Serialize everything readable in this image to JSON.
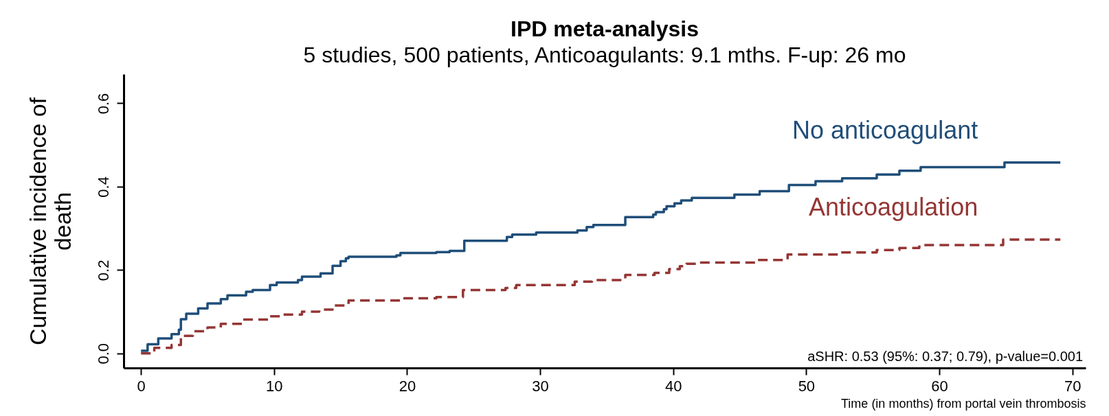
{
  "chart_data": {
    "type": "step",
    "title": "IPD meta-analysis",
    "subtitle": "5 studies, 500 patients, Anticoagulants: 9.1 mths. F-up: 26 mo",
    "xlabel": "Time (in months) from portal vein thrombosis",
    "ylabel": "Cumulative incidence of\ndeath",
    "annotations": [
      "aSHR: 0.53 (95%: 0.37; 0.79), p-value=0.001"
    ],
    "xlim": [
      -1.3,
      71
    ],
    "ylim": [
      -0.035,
      0.67
    ],
    "xticks": [
      0,
      10,
      20,
      30,
      40,
      50,
      60,
      70
    ],
    "yticks": [
      {
        "value": 0,
        "label": "0.0"
      },
      {
        "value": 0.2,
        "label": "0.2"
      },
      {
        "value": 0.4,
        "label": "0.4"
      },
      {
        "value": 0.6,
        "label": "0.6"
      }
    ],
    "grid": false,
    "series": [
      {
        "name": "No anticoagulant",
        "color": "#1f4e79",
        "line_style": "solid",
        "x": [
          0,
          0.5,
          1.3,
          2.3,
          2.85,
          3.0,
          3.4,
          4.3,
          5.0,
          6.0,
          6.5,
          7.9,
          8.4,
          9.7,
          10.2,
          11.8,
          12.1,
          13.5,
          14.4,
          15.0,
          15.4,
          15.6,
          19.2,
          19.5,
          22.2,
          23.2,
          24.3,
          27.5,
          27.9,
          29.7,
          32.8,
          33.5,
          34.0,
          36.4,
          38.5,
          38.7,
          39.3,
          39.5,
          40.1,
          40.6,
          41.4,
          44.6,
          46.5,
          48.7,
          50.7,
          52.7,
          55.3,
          57.0,
          58.6,
          64.9,
          69.1
        ],
        "values": [
          0.006,
          0.022,
          0.036,
          0.046,
          0.057,
          0.082,
          0.095,
          0.108,
          0.12,
          0.13,
          0.139,
          0.148,
          0.152,
          0.164,
          0.17,
          0.176,
          0.184,
          0.192,
          0.21,
          0.221,
          0.228,
          0.232,
          0.235,
          0.241,
          0.243,
          0.246,
          0.27,
          0.279,
          0.285,
          0.29,
          0.295,
          0.303,
          0.308,
          0.327,
          0.333,
          0.339,
          0.346,
          0.353,
          0.36,
          0.367,
          0.373,
          0.381,
          0.389,
          0.404,
          0.413,
          0.42,
          0.429,
          0.438,
          0.447,
          0.458,
          0.458
        ]
      },
      {
        "name": "Anticoagulation",
        "color": "#943634",
        "line_style": "dashed",
        "x": [
          0,
          1.0,
          2.3,
          3.0,
          3.9,
          5.0,
          6.0,
          7.6,
          9.7,
          10.7,
          12.1,
          13.4,
          14.4,
          15.6,
          19.5,
          22.2,
          24.2,
          27.4,
          28.2,
          32.6,
          33.9,
          36.4,
          38.6,
          39.7,
          40.5,
          41.0,
          42.0,
          46.3,
          48.6,
          52.6,
          55.3,
          57.0,
          58.5,
          64.8,
          69.1
        ],
        "values": [
          0,
          0.013,
          0.02,
          0.042,
          0.053,
          0.062,
          0.071,
          0.081,
          0.089,
          0.093,
          0.1,
          0.105,
          0.115,
          0.127,
          0.132,
          0.135,
          0.152,
          0.157,
          0.164,
          0.172,
          0.176,
          0.188,
          0.193,
          0.202,
          0.209,
          0.215,
          0.218,
          0.224,
          0.237,
          0.242,
          0.248,
          0.253,
          0.26,
          0.273,
          0.273
        ]
      }
    ]
  }
}
